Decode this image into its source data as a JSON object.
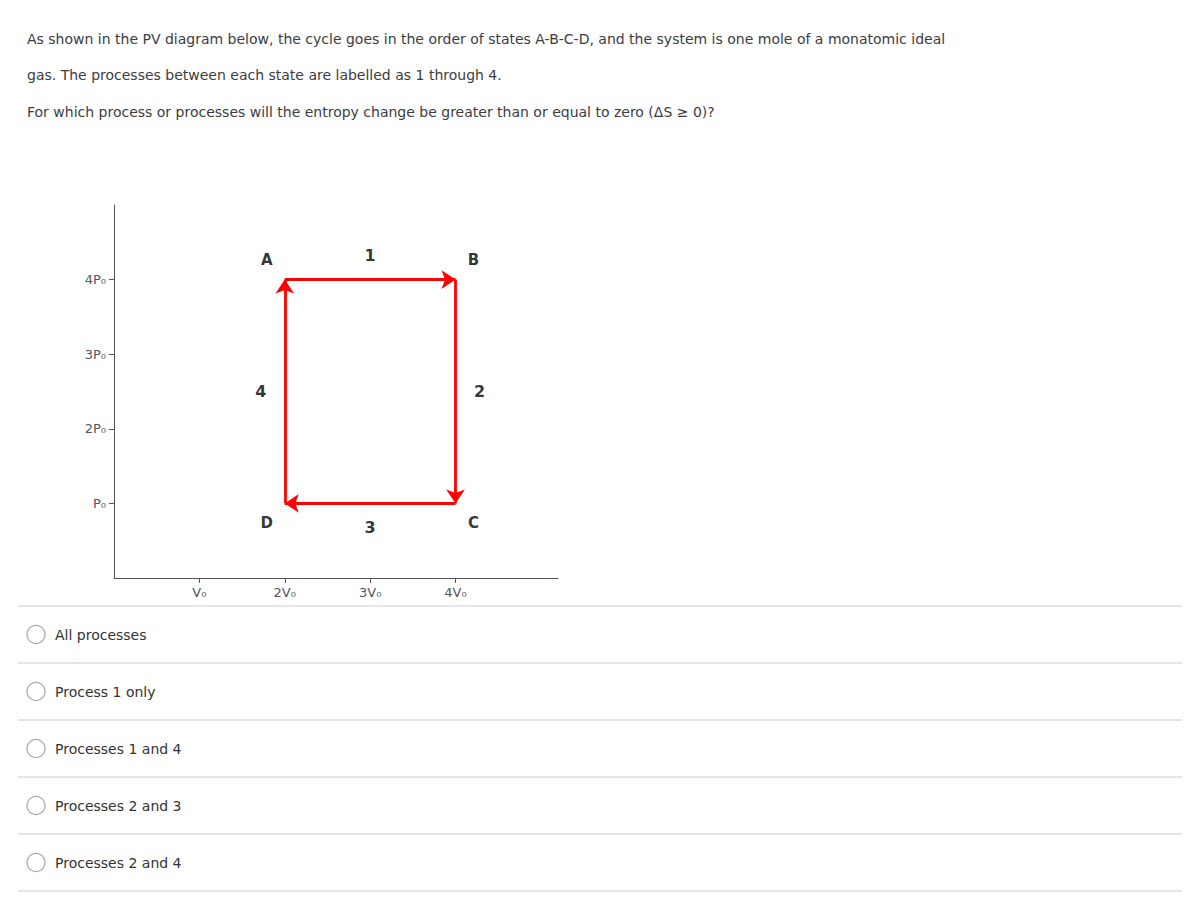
{
  "chart_data": {
    "type": "line",
    "title": [
      "As shown in the PV diagram below, the cycle goes in the order of states A-B-C-D, and the system is one mole of a monatomic ideal",
      "gas. The processes between each state are labelled as 1 through 4."
    ],
    "subtitle": "For which process or processes will the entropy change be greater than or equal to zero (ΔS ≥ 0)?",
    "points": [
      {
        "name": "A",
        "x": 2,
        "y": 4
      },
      {
        "name": "B",
        "x": 4,
        "y": 4
      },
      {
        "name": "C",
        "x": 4,
        "y": 1
      },
      {
        "name": "D",
        "x": 2,
        "y": 1
      }
    ],
    "processes": [
      {
        "name": "1",
        "from": "A",
        "to": "B"
      },
      {
        "name": "2",
        "from": "B",
        "to": "C"
      },
      {
        "name": "3",
        "from": "C",
        "to": "D"
      },
      {
        "name": "4",
        "from": "D",
        "to": "A"
      }
    ],
    "color": "#ff0000",
    "xlim": [
      0,
      5.2
    ],
    "ylim": [
      0,
      5.0
    ],
    "xticks": [
      {
        "value": 1,
        "label": "V₀"
      },
      {
        "value": 2,
        "label": "2V₀"
      },
      {
        "value": 3,
        "label": "3V₀"
      },
      {
        "value": 4,
        "label": "4V₀"
      }
    ],
    "yticks": [
      {
        "value": 1,
        "label": "P₀"
      },
      {
        "value": 2,
        "label": "2P₀"
      },
      {
        "value": 3,
        "label": "3P₀"
      },
      {
        "value": 4,
        "label": "4P₀"
      }
    ],
    "grid": false,
    "choices": [
      "All processes",
      "Process 1 only",
      "Processes 1 and 4",
      "Processes 2 and 3",
      "Processes 2 and 4"
    ]
  }
}
